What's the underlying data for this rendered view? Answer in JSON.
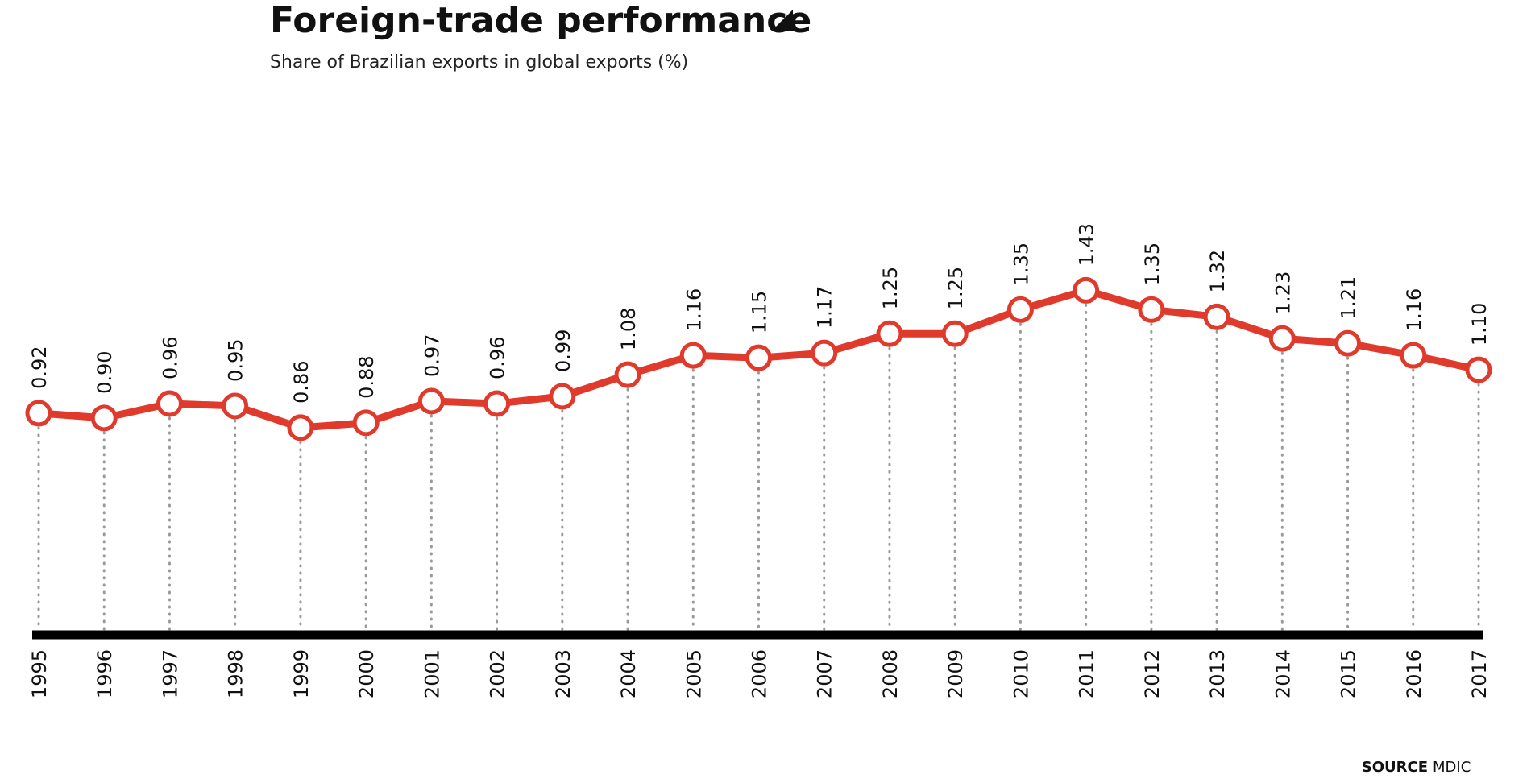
{
  "title": "Foreign-trade performance",
  "subtitle": "Share of Brazilian exports in global exports (%)",
  "source": {
    "key": "SOURCE",
    "value": "MDIC"
  },
  "colors": {
    "line": "#e03a2c",
    "marker_fill": "#ffffff",
    "baseline": "#000000",
    "dotted_guides": "#9a9a9a",
    "text": "#111111"
  },
  "chart_data": {
    "type": "line",
    "title": "Foreign-trade performance",
    "subtitle": "Share of Brazilian exports in global exports (%)",
    "xlabel": "",
    "ylabel": "",
    "grid": false,
    "legend": "none",
    "ylim": [
      0,
      1.5
    ],
    "categories": [
      "1995",
      "1996",
      "1997",
      "1998",
      "1999",
      "2000",
      "2001",
      "2002",
      "2003",
      "2004",
      "2005",
      "2006",
      "2007",
      "2008",
      "2009",
      "2010",
      "2011",
      "2012",
      "2013",
      "2014",
      "2015",
      "2016",
      "2017"
    ],
    "values": [
      0.92,
      0.9,
      0.96,
      0.95,
      0.86,
      0.88,
      0.97,
      0.96,
      0.99,
      1.08,
      1.16,
      1.15,
      1.17,
      1.25,
      1.25,
      1.35,
      1.43,
      1.35,
      1.32,
      1.23,
      1.21,
      1.16,
      1.1
    ],
    "value_labels": [
      "0.92",
      "0.90",
      "0.96",
      "0.95",
      "0.86",
      "0.88",
      "0.97",
      "0.96",
      "0.99",
      "1.08",
      "1.16",
      "1.15",
      "1.17",
      "1.25",
      "1.25",
      "1.35",
      "1.43",
      "1.35",
      "1.32",
      "1.23",
      "1.21",
      "1.16",
      "1.10"
    ]
  }
}
